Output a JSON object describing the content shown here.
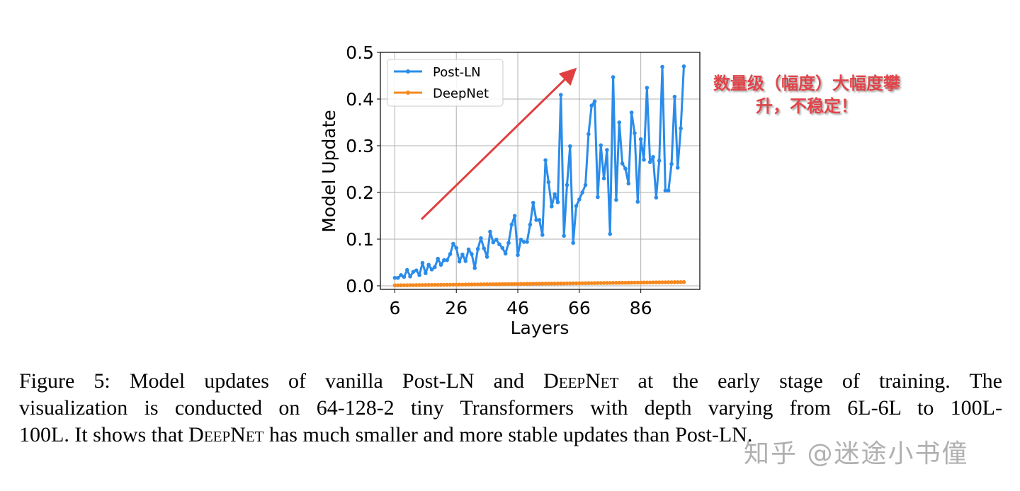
{
  "chart_data": {
    "type": "line",
    "title": "",
    "xlabel": "Layers",
    "ylabel": "Model Update",
    "xlim": [
      1.3,
      105.2
    ],
    "ylim": [
      -0.0076,
      0.5
    ],
    "xticks": [
      6,
      26,
      46,
      66,
      86
    ],
    "xtick_labels": [
      "6",
      "26",
      "46",
      "66",
      "86"
    ],
    "yticks": [
      0.0,
      0.1,
      0.2,
      0.3,
      0.4,
      0.5
    ],
    "ytick_labels": [
      "0.0",
      "0.1",
      "0.2",
      "0.3",
      "0.4",
      "0.5"
    ],
    "grid": true,
    "legend_placement": "upper-left",
    "x_start": 6,
    "x_end": 100,
    "series": [
      {
        "name": "Post-LN",
        "color": "#2a8cea",
        "values": [
          0.017,
          0.017,
          0.023,
          0.019,
          0.034,
          0.02,
          0.03,
          0.033,
          0.023,
          0.049,
          0.027,
          0.045,
          0.035,
          0.04,
          0.058,
          0.045,
          0.055,
          0.055,
          0.068,
          0.09,
          0.081,
          0.052,
          0.067,
          0.053,
          0.078,
          0.068,
          0.038,
          0.079,
          0.102,
          0.08,
          0.062,
          0.116,
          0.093,
          0.099,
          0.089,
          0.081,
          0.069,
          0.092,
          0.131,
          0.15,
          0.066,
          0.099,
          0.094,
          0.094,
          0.131,
          0.178,
          0.141,
          0.141,
          0.109,
          0.269,
          0.222,
          0.17,
          0.196,
          0.179,
          0.409,
          0.107,
          0.216,
          0.299,
          0.092,
          0.171,
          0.185,
          0.2,
          0.216,
          0.325,
          0.386,
          0.395,
          0.19,
          0.301,
          0.23,
          0.291,
          0.111,
          0.447,
          0.184,
          0.35,
          0.262,
          0.251,
          0.219,
          0.371,
          0.327,
          0.18,
          0.314,
          0.27,
          0.424,
          0.265,
          0.276,
          0.189,
          0.268,
          0.469,
          0.204,
          0.204,
          0.261,
          0.405,
          0.253,
          0.337,
          0.47
        ]
      },
      {
        "name": "DeepNet",
        "color": "#f5891f",
        "start_value": 0.001,
        "end_value": 0.008
      }
    ]
  },
  "annotation": {
    "text_line1": "数量级（幅度）大幅度攀",
    "text_line2": "升，不稳定！",
    "color": "#e0454a",
    "arrow_color": "#e04040"
  },
  "caption": {
    "l1a": "Figure 5: Model updates of vanilla Post-LN and ",
    "l1b": "DeepNet",
    "l1c": " at the early stage of training.  The",
    "l2": "visualization is conducted on 64-128-2 tiny Transformers with depth varying from 6L-6L to 100L-",
    "l3a": "100L. It shows that ",
    "l3b": "DeepNet",
    "l3c": " has much smaller and more stable updates than Post-LN."
  },
  "watermark": "知乎 @迷途小书僮"
}
